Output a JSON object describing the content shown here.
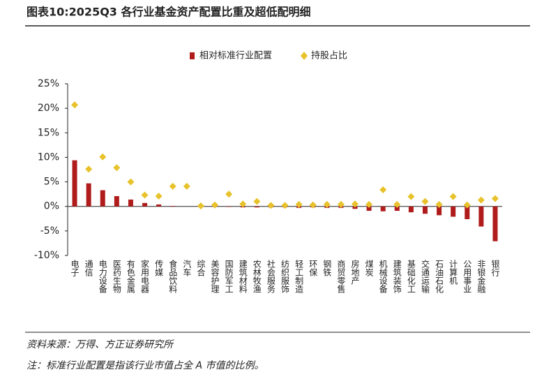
{
  "chart_data": {
    "type": "bar",
    "title": "图表10:2025Q3 各行业基金资产配置比重及超低配明细",
    "categories": [
      "电子",
      "通信",
      "电力设备",
      "医药生物",
      "有色金属",
      "家用电器",
      "传媒",
      "食品饮料",
      "汽车",
      "综合",
      "美容护理",
      "国防军工",
      "建筑材料",
      "农林牧渔",
      "社会服务",
      "纺织服饰",
      "轻工制造",
      "环保",
      "钢铁",
      "商贸零售",
      "房地产",
      "煤炭",
      "机械设备",
      "建筑装饰",
      "基础化工",
      "交通运输",
      "石油石化",
      "计算机",
      "公用事业",
      "非银金融",
      "银行"
    ],
    "series": [
      {
        "name": "相对标准行业配置",
        "color": "#b01c1c",
        "marker": "bar",
        "values": [
          9.4,
          4.7,
          3.3,
          2.1,
          1.4,
          0.7,
          0.4,
          0.1,
          0.0,
          -0.1,
          -0.1,
          -0.1,
          -0.2,
          -0.2,
          -0.2,
          -0.2,
          -0.3,
          -0.2,
          -0.3,
          -0.3,
          -0.5,
          -0.9,
          -1.0,
          -0.9,
          -1.2,
          -1.5,
          -1.8,
          -2.1,
          -2.6,
          -4.1,
          -7.1
        ]
      },
      {
        "name": "持股占比",
        "color": "#e8c22a",
        "marker": "diamond",
        "values": [
          20.7,
          7.6,
          10.1,
          7.9,
          5.0,
          2.3,
          2.1,
          4.1,
          4.1,
          0.1,
          0.3,
          2.5,
          0.5,
          1.0,
          0.2,
          0.2,
          0.4,
          0.3,
          0.4,
          0.4,
          0.5,
          0.4,
          3.4,
          0.4,
          2.0,
          1.0,
          0.4,
          2.0,
          0.3,
          1.3,
          1.6
        ]
      }
    ],
    "ylim": [
      -10,
      25
    ],
    "yticks": [
      {
        "value": -10,
        "label": "-10%"
      },
      {
        "value": -5,
        "label": "-5%"
      },
      {
        "value": 0,
        "label": "0%"
      },
      {
        "value": 5,
        "label": "5%"
      },
      {
        "value": 10,
        "label": "10%"
      },
      {
        "value": 15,
        "label": "15%"
      },
      {
        "value": 20,
        "label": "20%"
      },
      {
        "value": 25,
        "label": "25%"
      }
    ],
    "grid": false,
    "legend": "top",
    "source": "资料来源：万得、方正证券研究所",
    "note": "注：标准行业配置是指该行业市值占全 A 市值的比例。"
  }
}
